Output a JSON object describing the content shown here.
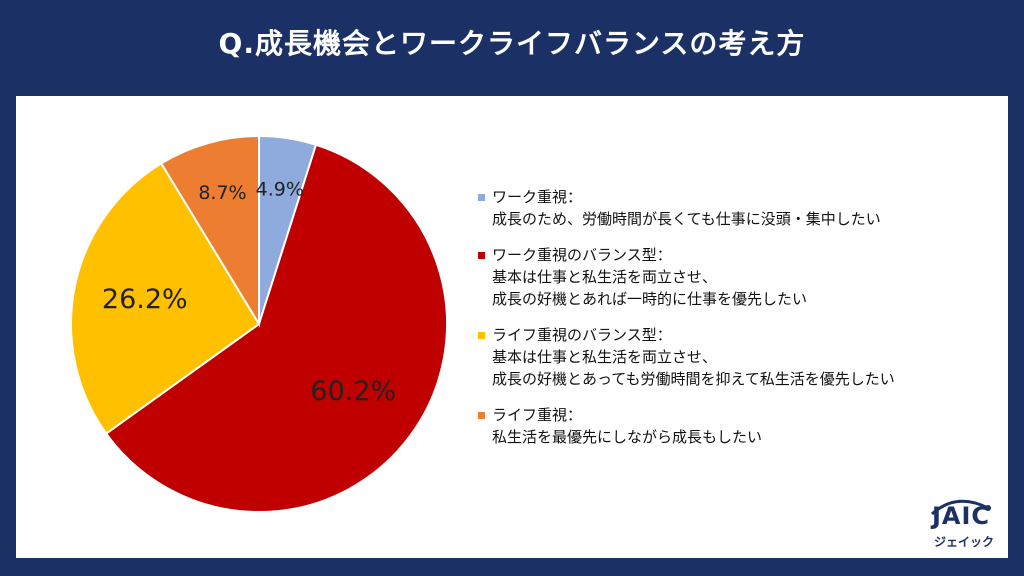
{
  "title": "Q.成長機会とワークライフバランスの考え方",
  "chart_data": {
    "type": "pie",
    "title": "Q.成長機会とワークライフバランスの考え方",
    "slices": [
      {
        "label": "ワーク重視：",
        "description": [
          "成長のため、労働時間が長くても仕事に没頭・集中したい"
        ],
        "value": 4.9,
        "value_label": "4.9%",
        "color": "#8faadc"
      },
      {
        "label": "ワーク重視のバランス型：",
        "description": [
          "基本は仕事と私生活を両立させ、",
          "成長の好機とあれば一時的に仕事を優先したい"
        ],
        "value": 60.2,
        "value_label": "60.2%",
        "color": "#c00000"
      },
      {
        "label": "ライフ重視のバランス型：",
        "description": [
          "基本は仕事と私生活を両立させ、",
          "成長の好機とあっても労働時間を抑えて私生活を優先したい"
        ],
        "value": 26.2,
        "value_label": "26.2%",
        "color": "#ffc000"
      },
      {
        "label": "ライフ重視：",
        "description": [
          "私生活を最優先にしながら成長もしたい"
        ],
        "value": 8.7,
        "value_label": "8.7%",
        "color": "#ed7d31"
      }
    ],
    "legend_position": "right"
  },
  "logo": {
    "main": "JAIC",
    "sub": "ジェイック"
  }
}
